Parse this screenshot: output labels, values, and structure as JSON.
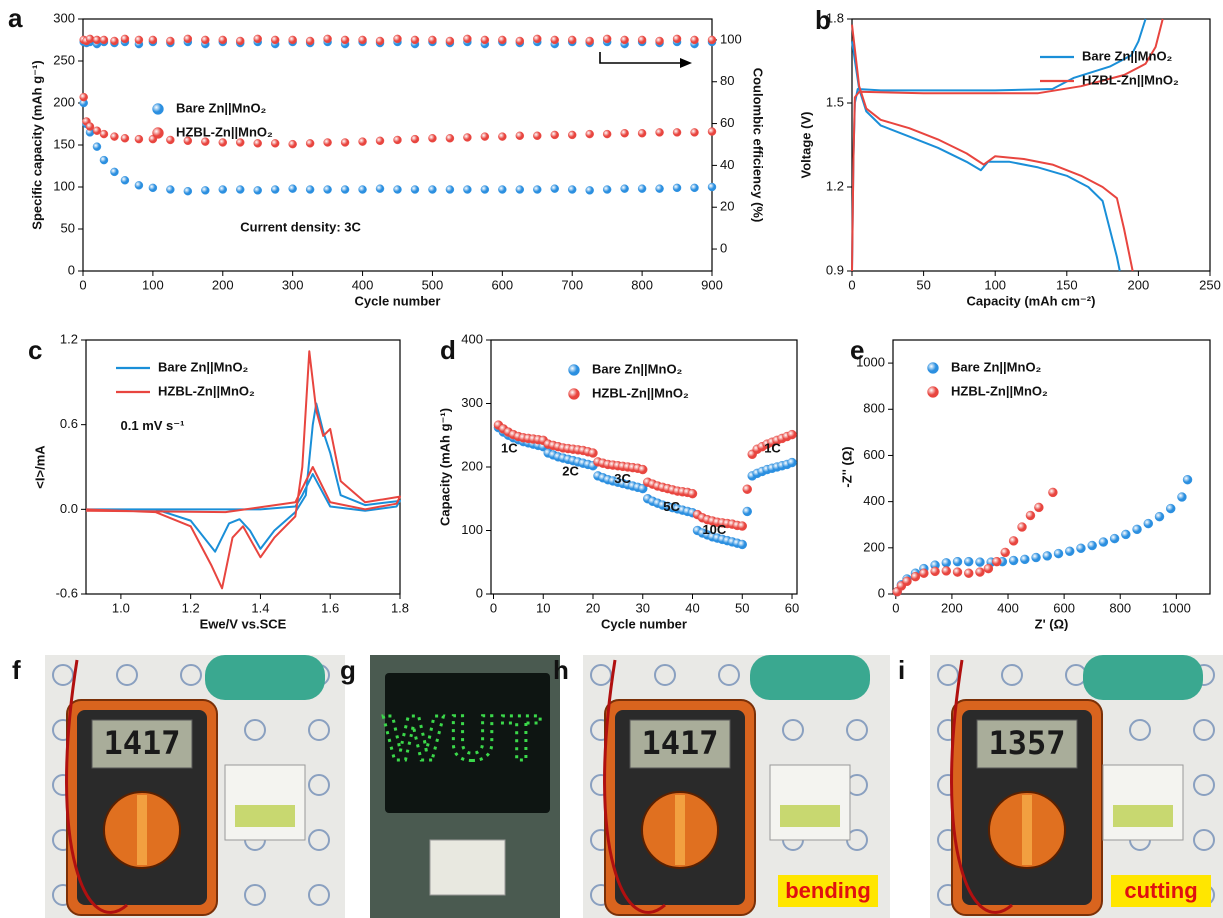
{
  "chart_data": [
    {
      "type": "scatter",
      "panel": "a",
      "xlabel": "Cycle number",
      "ylabel": "Specific capacity (mAh g⁻¹)",
      "y2label": "Coulombic efficiency (%)",
      "xlim": [
        0,
        900
      ],
      "xticks": [
        0,
        100,
        200,
        300,
        400,
        500,
        600,
        700,
        800,
        900
      ],
      "ylim": [
        0,
        300
      ],
      "yticks": [
        0,
        50,
        100,
        150,
        200,
        250,
        300
      ],
      "y2lim": [
        -10.5,
        110
      ],
      "y2ticks": [
        0,
        20,
        40,
        60,
        80,
        100
      ],
      "legend": "center left",
      "annotations": [
        "Current density: 3C"
      ],
      "x": [
        1,
        5,
        10,
        20,
        30,
        45,
        60,
        80,
        100,
        125,
        150,
        175,
        200,
        225,
        250,
        275,
        300,
        325,
        350,
        375,
        400,
        425,
        450,
        475,
        500,
        525,
        550,
        575,
        600,
        625,
        650,
        675,
        700,
        725,
        750,
        775,
        800,
        825,
        850,
        875,
        900
      ],
      "series": [
        {
          "name": "Bare Zn||MnO₂",
          "color": "#2b8fe0",
          "values": [
            200,
            175,
            165,
            148,
            132,
            118,
            108,
            102,
            99,
            97,
            95,
            96,
            97,
            97,
            96,
            97,
            98,
            97,
            97,
            97,
            97,
            98,
            97,
            97,
            97,
            97,
            97,
            97,
            97,
            97,
            97,
            98,
            97,
            96,
            97,
            98,
            98,
            98,
            99,
            99,
            100
          ]
        },
        {
          "name": "HZBL-Zn||MnO₂",
          "color": "#e8453f",
          "values": [
            207,
            178,
            172,
            167,
            163,
            160,
            158,
            157,
            157,
            156,
            155,
            154,
            153,
            153,
            152,
            152,
            151,
            152,
            153,
            153,
            154,
            155,
            156,
            157,
            158,
            158,
            159,
            160,
            160,
            161,
            161,
            162,
            162,
            163,
            163,
            164,
            164,
            165,
            165,
            165,
            166
          ]
        },
        {
          "color": "#2b8fe0",
          "axis": "y2",
          "values": [
            99,
            98.5,
            99,
            98,
            99,
            98.5,
            99,
            98,
            99,
            98.5,
            99,
            98,
            99,
            98.5,
            99,
            98,
            99,
            98.5,
            99,
            98,
            99,
            98.5,
            99,
            98,
            99,
            98.5,
            99,
            98,
            99,
            98.5,
            99,
            98,
            99,
            98.5,
            99,
            98,
            99,
            98.5,
            99,
            98,
            99
          ]
        },
        {
          "color": "#e8453f",
          "axis": "y2",
          "values": [
            100,
            99.5,
            100.5,
            100,
            100,
            99.5,
            100.5,
            100,
            100,
            99.5,
            100.5,
            100,
            100,
            99.5,
            100.5,
            100,
            100,
            99.5,
            100.5,
            100,
            100,
            99.5,
            100.5,
            100,
            100,
            99.5,
            100.5,
            100,
            100,
            99.5,
            100.5,
            100,
            100,
            99.5,
            100.5,
            100,
            100,
            99.5,
            100.5,
            100,
            100
          ]
        }
      ]
    },
    {
      "type": "line",
      "panel": "b",
      "xlabel": "Capacity (mAh cm⁻²)",
      "ylabel": "Voltage (V)",
      "xlim": [
        0,
        250
      ],
      "xticks": [
        0,
        50,
        100,
        150,
        200,
        250
      ],
      "ylim": [
        0.9,
        1.8
      ],
      "yticks": [
        0.9,
        1.2,
        1.5,
        1.8
      ],
      "legend": "upper right",
      "series": [
        {
          "name": "Bare Zn||MnO₂",
          "color": "#1a8fd8",
          "x": [
            0,
            5,
            10,
            20,
            40,
            60,
            80,
            90,
            95,
            110,
            130,
            150,
            165,
            175,
            180,
            185,
            187,
            null,
            0,
            1,
            2,
            4,
            20,
            100,
            140,
            155,
            180,
            195,
            200,
            205
          ],
          "values": [
            1.72,
            1.55,
            1.47,
            1.42,
            1.38,
            1.34,
            1.29,
            1.26,
            1.29,
            1.29,
            1.27,
            1.24,
            1.2,
            1.15,
            1.05,
            0.95,
            0.9,
            null,
            0.9,
            1.3,
            1.5,
            1.55,
            1.545,
            1.545,
            1.55,
            1.59,
            1.63,
            1.67,
            1.72,
            1.8
          ]
        },
        {
          "name": "HZBL-Zn||MnO₂",
          "color": "#e8453f",
          "x": [
            0,
            5,
            10,
            20,
            40,
            60,
            80,
            92,
            100,
            120,
            140,
            160,
            175,
            185,
            190,
            194,
            196,
            null,
            0,
            1,
            2,
            5,
            50,
            130,
            160,
            190,
            205,
            212,
            217
          ],
          "values": [
            1.78,
            1.56,
            1.48,
            1.44,
            1.41,
            1.37,
            1.32,
            1.28,
            1.31,
            1.3,
            1.28,
            1.24,
            1.2,
            1.16,
            1.05,
            0.95,
            0.9,
            null,
            0.9,
            1.3,
            1.52,
            1.54,
            1.535,
            1.535,
            1.56,
            1.6,
            1.64,
            1.7,
            1.8
          ]
        }
      ]
    },
    {
      "type": "line",
      "panel": "c",
      "xlabel": "Ewe/V vs.SCE",
      "ylabel": "<I>/mA",
      "xlim": [
        0.9,
        1.8
      ],
      "xticks": [
        {
          "value": 1,
          "label": "1.0"
        },
        1.2,
        1.4,
        1.6,
        1.8
      ],
      "ylim": [
        -0.6,
        1.2
      ],
      "yticks": [
        -0.6,
        {
          "value": 0,
          "label": "0.0"
        },
        0.6,
        1.2
      ],
      "legend": "upper left",
      "annotations": [
        "0.1 mV s⁻¹"
      ],
      "series": [
        {
          "name": "Bare Zn||MnO₂",
          "color": "#1a8fd8",
          "x": [
            0.9,
            1.1,
            1.2,
            1.27,
            1.31,
            1.34,
            1.37,
            1.4,
            1.44,
            1.5,
            1.53,
            1.55,
            1.56,
            1.58,
            1.6,
            1.63,
            1.7,
            1.8,
            1.79,
            1.7,
            1.6,
            1.55,
            1.52,
            1.5,
            1.4,
            1.2,
            0.9
          ],
          "values": [
            0,
            0,
            -0.08,
            -0.3,
            -0.1,
            -0.07,
            -0.15,
            -0.28,
            -0.15,
            -0.02,
            0.1,
            0.6,
            0.75,
            0.55,
            0.4,
            0.1,
            0.03,
            0.06,
            0.02,
            -0.01,
            0.02,
            0.25,
            0.1,
            0.02,
            0,
            0,
            0
          ]
        },
        {
          "name": "HZBL-Zn||MnO₂",
          "color": "#e8453f",
          "x": [
            0.9,
            1.1,
            1.2,
            1.26,
            1.29,
            1.32,
            1.35,
            1.4,
            1.44,
            1.5,
            1.52,
            1.54,
            1.56,
            1.58,
            1.6,
            1.63,
            1.7,
            1.8,
            1.79,
            1.7,
            1.6,
            1.55,
            1.5,
            1.3,
            0.9
          ],
          "values": [
            0,
            -0.02,
            -0.12,
            -0.4,
            -0.56,
            -0.2,
            -0.12,
            -0.34,
            -0.2,
            -0.05,
            0.3,
            1.12,
            0.7,
            0.52,
            0.57,
            0.2,
            0.05,
            0.09,
            0.04,
            0,
            0.05,
            0.3,
            0.05,
            -0.02,
            -0.01
          ]
        }
      ]
    },
    {
      "type": "scatter",
      "panel": "d",
      "xlabel": "Cycle number",
      "ylabel": "Capacity (mAh g⁻¹)",
      "xlim": [
        -0.5,
        61
      ],
      "xticks": [
        0,
        10,
        20,
        30,
        40,
        50,
        60
      ],
      "ylim": [
        0,
        400
      ],
      "yticks": [
        0,
        100,
        200,
        300,
        400
      ],
      "legend": "upper center",
      "annotations": [
        "1C",
        "2C",
        "3C",
        "5C",
        "10C",
        "1C"
      ],
      "x": [
        1,
        2,
        3,
        4,
        5,
        6,
        7,
        8,
        9,
        10,
        11,
        12,
        13,
        14,
        15,
        16,
        17,
        18,
        19,
        20,
        21,
        22,
        23,
        24,
        25,
        26,
        27,
        28,
        29,
        30,
        31,
        32,
        33,
        34,
        35,
        36,
        37,
        38,
        39,
        40,
        41,
        42,
        43,
        44,
        45,
        46,
        47,
        48,
        49,
        50,
        51,
        52,
        53,
        54,
        55,
        56,
        57,
        58,
        59,
        60
      ],
      "series": [
        {
          "name": "Bare Zn||MnO₂",
          "color": "#2b8fe0",
          "values": [
            262,
            255,
            250,
            246,
            243,
            240,
            238,
            236,
            234,
            232,
            222,
            219,
            216,
            214,
            212,
            210,
            208,
            206,
            204,
            202,
            186,
            183,
            180,
            178,
            176,
            174,
            172,
            170,
            168,
            166,
            150,
            146,
            143,
            140,
            138,
            136,
            134,
            132,
            130,
            128,
            100,
            96,
            93,
            90,
            88,
            86,
            84,
            82,
            80,
            78,
            130,
            186,
            190,
            193,
            196,
            198,
            200,
            202,
            204,
            207
          ]
        },
        {
          "name": "HZBL-Zn||MnO₂",
          "color": "#e8453f",
          "values": [
            266,
            260,
            255,
            251,
            248,
            246,
            245,
            244,
            243,
            242,
            236,
            234,
            232,
            230,
            229,
            228,
            227,
            226,
            224,
            222,
            208,
            206,
            204,
            203,
            202,
            201,
            200,
            199,
            198,
            196,
            176,
            173,
            170,
            168,
            166,
            164,
            162,
            161,
            160,
            158,
            125,
            120,
            117,
            115,
            113,
            112,
            111,
            110,
            108,
            107,
            165,
            220,
            228,
            232,
            236,
            239,
            242,
            245,
            248,
            251
          ]
        }
      ]
    },
    {
      "type": "scatter",
      "panel": "e",
      "xlabel": "Z' (Ω)",
      "ylabel": "-Z'' (Ω)",
      "xlim": [
        -10,
        1120
      ],
      "xticks": [
        0,
        200,
        400,
        600,
        800,
        1000
      ],
      "ylim": [
        0,
        1100
      ],
      "yticks": [
        0,
        200,
        400,
        600,
        800,
        1000
      ],
      "legend": "upper left",
      "series": [
        {
          "name": "Bare Zn||MnO₂",
          "color": "#2b8fe0",
          "x": [
            5,
            20,
            40,
            70,
            100,
            140,
            180,
            220,
            260,
            300,
            340,
            380,
            420,
            460,
            500,
            540,
            580,
            620,
            660,
            700,
            740,
            780,
            820,
            860,
            900,
            940,
            980,
            1020,
            1040
          ],
          "values": [
            10,
            40,
            65,
            90,
            110,
            125,
            135,
            140,
            140,
            138,
            138,
            140,
            145,
            150,
            158,
            165,
            175,
            185,
            198,
            210,
            225,
            240,
            258,
            280,
            305,
            335,
            370,
            420,
            495
          ]
        },
        {
          "name": "HZBL-Zn||MnO₂",
          "color": "#e8453f",
          "x": [
            5,
            20,
            40,
            70,
            100,
            140,
            180,
            220,
            260,
            300,
            330,
            360,
            390,
            420,
            450,
            480,
            510,
            560
          ],
          "values": [
            10,
            35,
            55,
            75,
            90,
            98,
            100,
            95,
            90,
            95,
            110,
            140,
            180,
            230,
            290,
            340,
            375,
            440
          ]
        }
      ]
    }
  ],
  "photos": [
    {
      "panel": "f",
      "display": "1417"
    },
    {
      "panel": "g",
      "sign": "WUT"
    },
    {
      "panel": "h",
      "display": "1417",
      "caption": "bending"
    },
    {
      "panel": "i",
      "display": "1357",
      "caption": "cutting"
    }
  ]
}
